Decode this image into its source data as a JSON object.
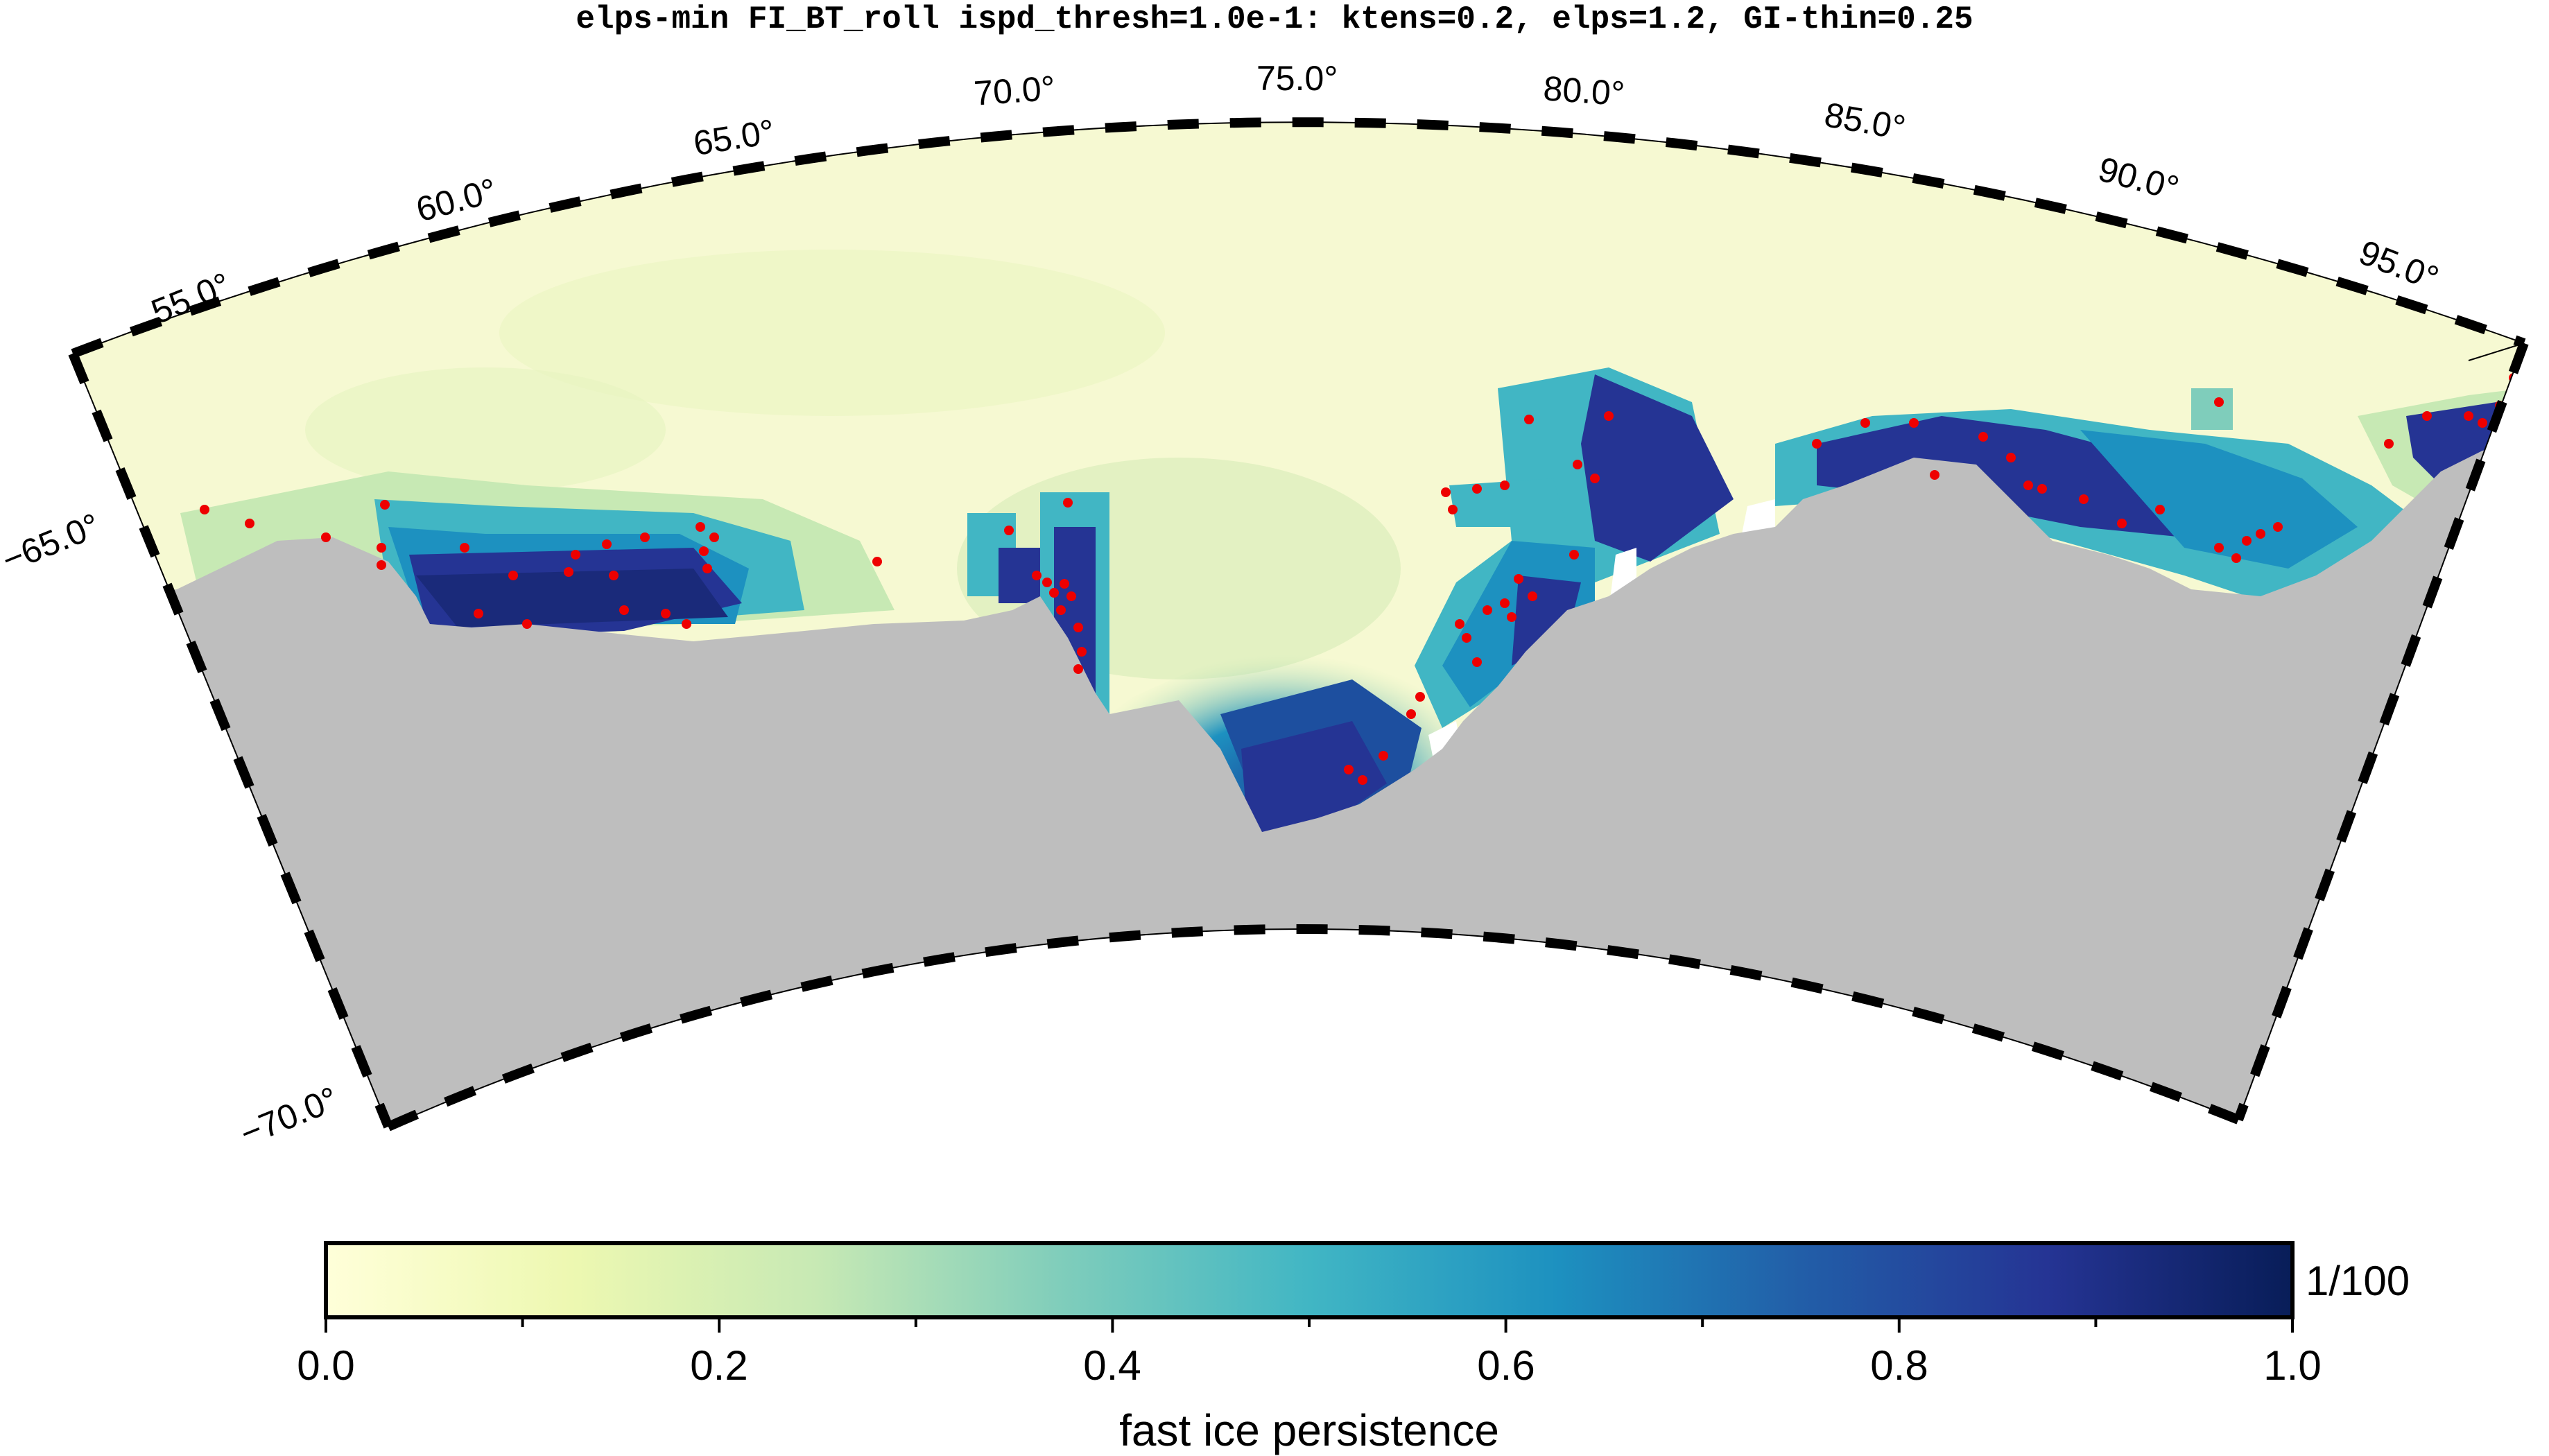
{
  "title": "elps-min FI_BT_roll ispd_thresh=1.0e-1: ktens=0.2, elps=1.2, GI-thin=0.25",
  "map": {
    "projection": "polar stereographic sector",
    "lon_labels": [
      "55.0°",
      "60.0°",
      "65.0°",
      "70.0°",
      "75.0°",
      "80.0°",
      "85.0°",
      "90.0°",
      "95.0°"
    ],
    "lat_labels": [
      "−65.0°",
      "−70.0°"
    ],
    "colors": {
      "land": "#bebebe",
      "open_ocean": "#f6f9d2",
      "grounded_icebergs": "#ee0000",
      "no_data": "#ffffff"
    },
    "legend_items": [
      "land",
      "fast ice persistence",
      "grounded iceberg points"
    ]
  },
  "colorbar": {
    "label": "fast ice persistence",
    "unit": "1/100",
    "ticks": [
      "0.0",
      "0.2",
      "0.4",
      "0.6",
      "0.8",
      "1.0"
    ],
    "range": [
      0,
      1
    ],
    "colors": [
      "#ffffd9",
      "#edf8b1",
      "#c7e9b4",
      "#7fcdbb",
      "#41b6c4",
      "#1d91c0",
      "#225ea8",
      "#253494",
      "#081d58"
    ]
  }
}
